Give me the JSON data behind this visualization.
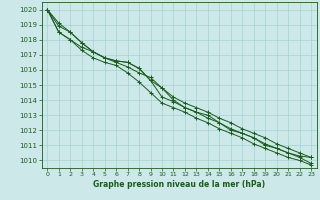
{
  "xlabel": "Graphe pression niveau de la mer (hPa)",
  "bg_color": "#cce8e8",
  "grid_color": "#99cccc",
  "line_color": "#1a5c1a",
  "xlim": [
    -0.5,
    23.5
  ],
  "ylim": [
    1009.5,
    1020.5
  ],
  "xticks": [
    0,
    1,
    2,
    3,
    4,
    5,
    6,
    7,
    8,
    9,
    10,
    11,
    12,
    13,
    14,
    15,
    16,
    17,
    18,
    19,
    20,
    21,
    22,
    23
  ],
  "yticks": [
    1010,
    1011,
    1012,
    1013,
    1014,
    1015,
    1016,
    1017,
    1018,
    1019,
    1020
  ],
  "series": [
    [
      1020.0,
      1019.1,
      1018.5,
      1017.8,
      1017.2,
      1016.8,
      1016.5,
      1016.2,
      1015.8,
      1015.5,
      1014.8,
      1014.0,
      1013.5,
      1013.2,
      1013.0,
      1012.5,
      1012.0,
      1011.8,
      1011.5,
      1011.0,
      1010.8,
      1010.5,
      1010.3,
      1010.2
    ],
    [
      1020.0,
      1018.9,
      1018.5,
      1017.8,
      1017.2,
      1016.8,
      1016.6,
      1016.5,
      1016.1,
      1015.3,
      1014.8,
      1014.2,
      1013.8,
      1013.5,
      1013.2,
      1012.8,
      1012.5,
      1012.1,
      1011.8,
      1011.5,
      1011.1,
      1010.8,
      1010.5,
      1010.2
    ],
    [
      1020.0,
      1018.5,
      1018.0,
      1017.5,
      1017.2,
      1016.8,
      1016.6,
      1016.5,
      1016.1,
      1015.3,
      1014.2,
      1013.9,
      1013.5,
      1013.2,
      1012.8,
      1012.5,
      1012.1,
      1011.8,
      1011.5,
      1011.1,
      1010.8,
      1010.5,
      1010.2,
      1009.8
    ],
    [
      1020.0,
      1018.5,
      1018.0,
      1017.3,
      1016.8,
      1016.5,
      1016.3,
      1015.8,
      1015.2,
      1014.5,
      1013.8,
      1013.5,
      1013.2,
      1012.8,
      1012.5,
      1012.1,
      1011.8,
      1011.5,
      1011.1,
      1010.8,
      1010.5,
      1010.2,
      1010.0,
      1009.7
    ]
  ]
}
